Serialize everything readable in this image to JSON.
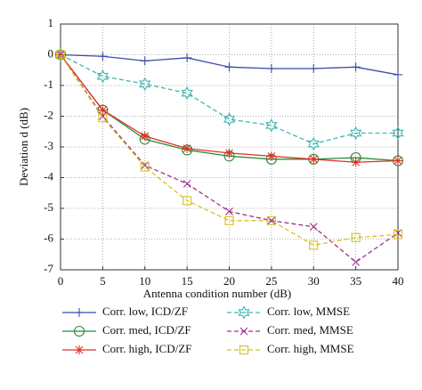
{
  "chart_data": {
    "type": "line",
    "xlabel": "Antenna condition number (dB)",
    "ylabel": "Deviation d (dB)",
    "x": [
      0,
      5,
      10,
      15,
      20,
      25,
      30,
      35,
      40
    ],
    "xlim": [
      0,
      40
    ],
    "xticks": [
      0,
      5,
      10,
      15,
      20,
      25,
      30,
      35,
      40
    ],
    "ylim": [
      -7,
      1
    ],
    "yticks": [
      1,
      0,
      -1,
      -2,
      -3,
      -4,
      -5,
      -6,
      -7
    ],
    "grid": true,
    "series": [
      {
        "name": "Corr. low, ICD/ZF",
        "color": "#3b4ba8",
        "marker": "plus",
        "dashed": false,
        "values": [
          0,
          -0.05,
          -0.2,
          -0.1,
          -0.4,
          -0.45,
          -0.45,
          -0.4,
          -0.65
        ]
      },
      {
        "name": "Corr. med, ICD/ZF",
        "color": "#2a8a3a",
        "marker": "circle",
        "dashed": false,
        "values": [
          0,
          -1.8,
          -2.75,
          -3.1,
          -3.3,
          -3.4,
          -3.4,
          -3.35,
          -3.45
        ]
      },
      {
        "name": "Corr. high, ICD/ZF",
        "color": "#e03020",
        "marker": "star",
        "dashed": false,
        "values": [
          0,
          -1.8,
          -2.65,
          -3.05,
          -3.2,
          -3.3,
          -3.4,
          -3.5,
          -3.45
        ]
      },
      {
        "name": "Corr. low, MMSE",
        "color": "#3fb6b0",
        "marker": "hexagram",
        "dashed": true,
        "values": [
          0,
          -0.7,
          -0.95,
          -1.25,
          -2.1,
          -2.3,
          -2.9,
          -2.55,
          -2.55
        ]
      },
      {
        "name": "Corr. med, MMSE",
        "color": "#a03090",
        "marker": "x",
        "dashed": true,
        "values": [
          0,
          -2.0,
          -3.6,
          -4.2,
          -5.1,
          -5.4,
          -5.6,
          -6.75,
          -5.8
        ]
      },
      {
        "name": "Corr. high, MMSE",
        "color": "#d8c020",
        "marker": "square",
        "dashed": true,
        "values": [
          0,
          -2.05,
          -3.65,
          -4.75,
          -5.4,
          -5.4,
          -6.2,
          -5.95,
          -5.85
        ]
      }
    ]
  }
}
